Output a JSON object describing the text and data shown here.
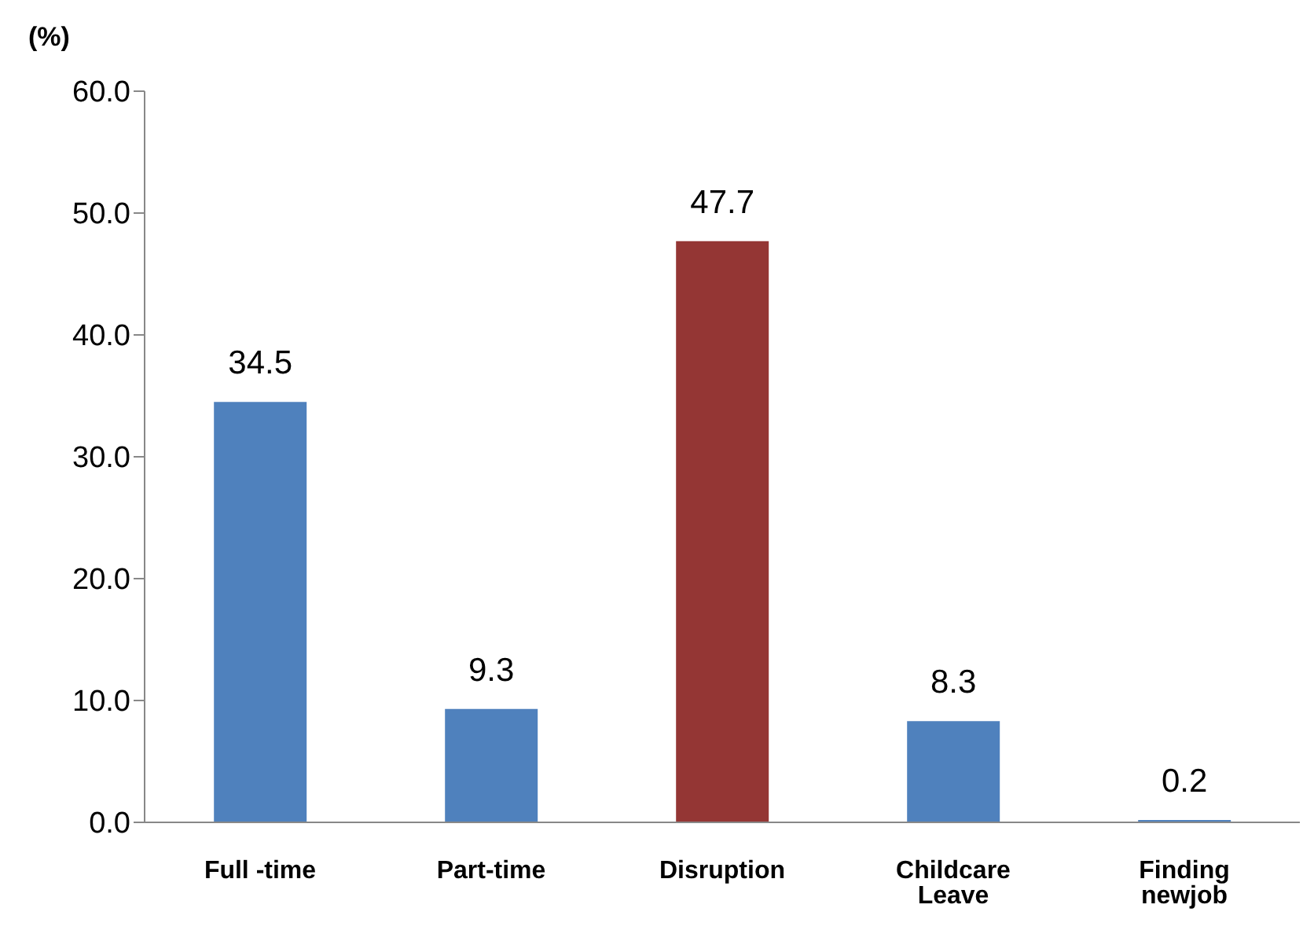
{
  "chart_data": {
    "type": "bar",
    "ylabel": "(%)",
    "categories": [
      "Full -time",
      "Part-time",
      "Disruption",
      "Childcare Leave",
      "Finding newjob"
    ],
    "values": [
      34.5,
      9.3,
      47.7,
      8.3,
      0.2
    ],
    "colors": [
      "#4f81bd",
      "#4f81bd",
      "#943634",
      "#4f81bd",
      "#4f81bd"
    ],
    "ylim": [
      0,
      60
    ],
    "yticks": [
      {
        "value": 0,
        "label": "0.0"
      },
      {
        "value": 10,
        "label": "10.0"
      },
      {
        "value": 20,
        "label": "20.0"
      },
      {
        "value": 30,
        "label": "30.0"
      },
      {
        "value": 40,
        "label": "40.0"
      },
      {
        "value": 50,
        "label": "50.0"
      },
      {
        "value": 60,
        "label": "60.0"
      }
    ],
    "data_labels": true,
    "grid": false,
    "legend": false
  }
}
